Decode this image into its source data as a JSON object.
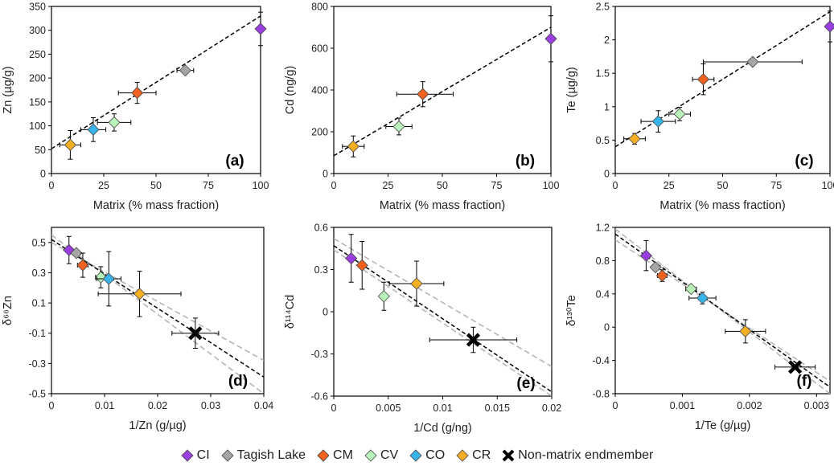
{
  "colors": {
    "CI": "#9b3ee0",
    "Tagish Lake": "#a6a6a6",
    "CM": "#f0621e",
    "CV": "#b9f5b9",
    "CO": "#38b4ea",
    "CR": "#f6ae22",
    "Non-matrix endmember": "#000000"
  },
  "legend": [
    {
      "name": "CI",
      "marker": "diamond"
    },
    {
      "name": "Tagish Lake",
      "marker": "diamond"
    },
    {
      "name": "CM",
      "marker": "diamond"
    },
    {
      "name": "CV",
      "marker": "diamond"
    },
    {
      "name": "CO",
      "marker": "diamond"
    },
    {
      "name": "CR",
      "marker": "diamond"
    },
    {
      "name": "Non-matrix endmember",
      "marker": "x"
    }
  ],
  "chart_data": [
    {
      "panel": "(a)",
      "type": "scatter",
      "xlabel": "Matrix (% mass fraction)",
      "ylabel": "Zn (µg/g)",
      "xlim": [
        0,
        100
      ],
      "ylim": [
        0,
        350
      ],
      "xticks": [
        0,
        25,
        50,
        75,
        100
      ],
      "yticks": [
        0,
        50,
        100,
        150,
        200,
        250,
        300,
        350
      ],
      "fit_line": {
        "x": [
          0,
          100
        ],
        "y": [
          52,
          330
        ]
      },
      "points": [
        {
          "name": "CR",
          "x": 9,
          "y": 60,
          "xerr": [
            5,
            5
          ],
          "yerr": [
            30,
            30
          ]
        },
        {
          "name": "CO",
          "x": 20,
          "y": 92,
          "xerr": [
            6,
            6
          ],
          "yerr": [
            25,
            25
          ]
        },
        {
          "name": "CV",
          "x": 30,
          "y": 107,
          "xerr": [
            8,
            8
          ],
          "yerr": [
            18,
            18
          ]
        },
        {
          "name": "CM",
          "x": 41,
          "y": 169,
          "xerr": [
            9,
            9
          ],
          "yerr": [
            22,
            22
          ]
        },
        {
          "name": "Tagish Lake",
          "x": 64,
          "y": 216,
          "xerr": [
            4,
            4
          ],
          "yerr": [
            7,
            7
          ]
        },
        {
          "name": "CI",
          "x": 100,
          "y": 303,
          "xerr": [
            0,
            0
          ],
          "yerr": [
            35,
            35
          ]
        }
      ]
    },
    {
      "panel": "(b)",
      "type": "scatter",
      "xlabel": "Matrix (% mass fraction)",
      "ylabel": "Cd (ng/g)",
      "xlim": [
        0,
        100
      ],
      "ylim": [
        0,
        800
      ],
      "xticks": [
        0,
        25,
        50,
        75,
        100
      ],
      "yticks": [
        0,
        200,
        400,
        600,
        800
      ],
      "fit_line": {
        "x": [
          0,
          100
        ],
        "y": [
          85,
          700
        ]
      },
      "points": [
        {
          "name": "CR",
          "x": 9,
          "y": 130,
          "xerr": [
            5,
            5
          ],
          "yerr": [
            50,
            50
          ]
        },
        {
          "name": "CV",
          "x": 30,
          "y": 225,
          "xerr": [
            6,
            6
          ],
          "yerr": [
            40,
            40
          ]
        },
        {
          "name": "CM",
          "x": 41,
          "y": 380,
          "xerr": [
            12,
            14
          ],
          "yerr": [
            60,
            60
          ]
        },
        {
          "name": "CI",
          "x": 100,
          "y": 645,
          "xerr": [
            0,
            0
          ],
          "yerr": [
            110,
            110
          ]
        }
      ]
    },
    {
      "panel": "(c)",
      "type": "scatter",
      "xlabel": "Matrix (% mass fraction)",
      "ylabel": "Te (µg/g)",
      "xlim": [
        0,
        100
      ],
      "ylim": [
        0,
        2.5
      ],
      "xticks": [
        0,
        25,
        50,
        75,
        100
      ],
      "yticks": [
        0,
        0.5,
        1,
        1.5,
        2,
        2.5
      ],
      "fit_line": {
        "x": [
          0,
          100
        ],
        "y": [
          0.4,
          2.42
        ]
      },
      "points": [
        {
          "name": "CR",
          "x": 9,
          "y": 0.52,
          "xerr": [
            5,
            5
          ],
          "yerr": [
            0.08,
            0.08
          ]
        },
        {
          "name": "CO",
          "x": 20,
          "y": 0.78,
          "xerr": [
            8,
            8
          ],
          "yerr": [
            0.16,
            0.16
          ]
        },
        {
          "name": "CV",
          "x": 30,
          "y": 0.89,
          "xerr": [
            5,
            5
          ],
          "yerr": [
            0.1,
            0.1
          ]
        },
        {
          "name": "CM",
          "x": 41,
          "y": 1.41,
          "xerr": [
            5,
            5
          ],
          "yerr": [
            0.23,
            0.23
          ]
        },
        {
          "name": "Tagish Lake",
          "x": 64,
          "y": 1.67,
          "xerr": [
            23,
            23
          ],
          "yerr": [
            0,
            0
          ]
        },
        {
          "name": "CI",
          "x": 100,
          "y": 2.2,
          "xerr": [
            0,
            0
          ],
          "yerr": [
            0.23,
            0.23
          ]
        }
      ]
    },
    {
      "panel": "(d)",
      "type": "scatter",
      "xlabel": "1/Zn (g/µg)",
      "ylabel": "δ⁶⁶Zn",
      "xlim": [
        0,
        0.04
      ],
      "ylim": [
        -0.5,
        0.6
      ],
      "xticks": [
        0,
        0.01,
        0.02,
        0.03,
        0.04
      ],
      "yticks": [
        -0.5,
        -0.3,
        -0.1,
        0.1,
        0.3,
        0.5
      ],
      "xtick_labels": [
        "0",
        "0.01",
        "0.02",
        "0.03",
        "0.04"
      ],
      "ytick_labels": [
        "-0.5",
        "-0.3",
        "-0.1",
        "0.1",
        "0.3",
        "0.5"
      ],
      "fit_line": {
        "x": [
          0,
          0.04
        ],
        "y": [
          0.52,
          -0.39
        ]
      },
      "conf_lines": [
        {
          "x": [
            0,
            0.04
          ],
          "y": [
            0.5,
            -0.28
          ]
        },
        {
          "x": [
            0,
            0.04
          ],
          "y": [
            0.55,
            -0.5
          ]
        }
      ],
      "points": [
        {
          "name": "CI",
          "x": 0.0033,
          "y": 0.45,
          "xerr": [
            0,
            0
          ],
          "yerr": [
            0.09,
            0.09
          ]
        },
        {
          "name": "Tagish Lake",
          "x": 0.0047,
          "y": 0.43,
          "xerr": [
            0,
            0
          ],
          "yerr": [
            0,
            0
          ]
        },
        {
          "name": "CM",
          "x": 0.0059,
          "y": 0.35,
          "xerr": [
            0.001,
            0.001
          ],
          "yerr": [
            0.08,
            0.08
          ]
        },
        {
          "name": "CV",
          "x": 0.0093,
          "y": 0.27,
          "xerr": [
            0.001,
            0.001
          ],
          "yerr": [
            0.07,
            0.07
          ]
        },
        {
          "name": "CO",
          "x": 0.0108,
          "y": 0.26,
          "xerr": [
            0.0023,
            0.0023
          ],
          "yerr": [
            0.18,
            0.18
          ]
        },
        {
          "name": "CR",
          "x": 0.0166,
          "y": 0.16,
          "xerr": [
            0.0078,
            0.0078
          ],
          "yerr": [
            0.15,
            0.15
          ]
        },
        {
          "name": "Non-matrix endmember",
          "x": 0.0271,
          "y": -0.1,
          "xerr": [
            0.0044,
            0.0044
          ],
          "yerr": [
            0.1,
            0.1
          ]
        }
      ]
    },
    {
      "panel": "(e)",
      "type": "scatter",
      "xlabel": "1/Cd (g/ng)",
      "ylabel": "δ¹¹⁴Cd",
      "xlim": [
        0,
        0.02
      ],
      "ylim": [
        -0.6,
        0.6
      ],
      "xticks": [
        0,
        0.005,
        0.01,
        0.015,
        0.02
      ],
      "yticks": [
        -0.6,
        -0.3,
        0,
        0.3,
        0.6
      ],
      "xtick_labels": [
        "0",
        "0.005",
        "0.01",
        "0.015",
        "0.02"
      ],
      "ytick_labels": [
        "-0.6",
        "-0.3",
        "0",
        "0.3",
        "0.6"
      ],
      "fit_line": {
        "x": [
          0,
          0.02
        ],
        "y": [
          0.47,
          -0.57
        ]
      },
      "conf_lines": [
        {
          "x": [
            0,
            0.02
          ],
          "y": [
            0.52,
            -0.39
          ]
        },
        {
          "x": [
            0,
            0.02
          ],
          "y": [
            0.44,
            -0.6
          ]
        }
      ],
      "points": [
        {
          "name": "CI",
          "x": 0.0016,
          "y": 0.38,
          "xerr": [
            0,
            0
          ],
          "yerr": [
            0.17,
            0.17
          ]
        },
        {
          "name": "CM",
          "x": 0.0026,
          "y": 0.33,
          "xerr": [
            0,
            0
          ],
          "yerr": [
            0.17,
            0.17
          ]
        },
        {
          "name": "CV",
          "x": 0.0046,
          "y": 0.11,
          "xerr": [
            0,
            0
          ],
          "yerr": [
            0.1,
            0.1
          ]
        },
        {
          "name": "CR",
          "x": 0.0076,
          "y": 0.2,
          "xerr": [
            0.0025,
            0.0025
          ],
          "yerr": [
            0.16,
            0.16
          ]
        },
        {
          "name": "Non-matrix endmember",
          "x": 0.0128,
          "y": -0.2,
          "xerr": [
            0.004,
            0.004
          ],
          "yerr": [
            0.09,
            0.09
          ]
        }
      ]
    },
    {
      "panel": "(f)",
      "type": "scatter",
      "xlabel": "1/Te (g/µg)",
      "ylabel": "δ¹³⁰Te",
      "xlim": [
        0,
        0.0032
      ],
      "ylim": [
        -0.8,
        1.2
      ],
      "xticks": [
        0,
        0.001,
        0.002,
        0.003
      ],
      "yticks": [
        -0.8,
        -0.4,
        0,
        0.4,
        0.8,
        1.2
      ],
      "xtick_labels": [
        "0",
        "0.001",
        "0.002",
        "0.003"
      ],
      "ytick_labels": [
        "-0.8",
        "-0.4",
        "0",
        "0.4",
        "0.8",
        "1.2"
      ],
      "fit_line": {
        "x": [
          0,
          0.0032
        ],
        "y": [
          1.12,
          -0.72
        ]
      },
      "conf_lines": [
        {
          "x": [
            0,
            0.0032
          ],
          "y": [
            1.05,
            -0.65
          ]
        },
        {
          "x": [
            0,
            0.0032
          ],
          "y": [
            1.18,
            -0.8
          ]
        }
      ],
      "points": [
        {
          "name": "CI",
          "x": 0.00046,
          "y": 0.86,
          "xerr": [
            0,
            0
          ],
          "yerr": [
            0.18,
            0.18
          ]
        },
        {
          "name": "Tagish Lake",
          "x": 0.0006,
          "y": 0.72,
          "xerr": [
            0,
            0
          ],
          "yerr": [
            0,
            0
          ]
        },
        {
          "name": "CM",
          "x": 0.0007,
          "y": 0.62,
          "xerr": [
            7e-05,
            7e-05
          ],
          "yerr": [
            0.07,
            0.07
          ]
        },
        {
          "name": "CV",
          "x": 0.00113,
          "y": 0.46,
          "xerr": [
            8e-05,
            8e-05
          ],
          "yerr": [
            0,
            0
          ]
        },
        {
          "name": "CO",
          "x": 0.0013,
          "y": 0.35,
          "xerr": [
            0.0002,
            0.0002
          ],
          "yerr": [
            0.07,
            0.07
          ]
        },
        {
          "name": "CR",
          "x": 0.00194,
          "y": -0.05,
          "xerr": [
            0.0003,
            0.0003
          ],
          "yerr": [
            0.14,
            0.14
          ]
        },
        {
          "name": "Non-matrix endmember",
          "x": 0.00268,
          "y": -0.48,
          "xerr": [
            0.0003,
            0.0003
          ],
          "yerr": [
            0,
            0
          ]
        }
      ]
    }
  ]
}
